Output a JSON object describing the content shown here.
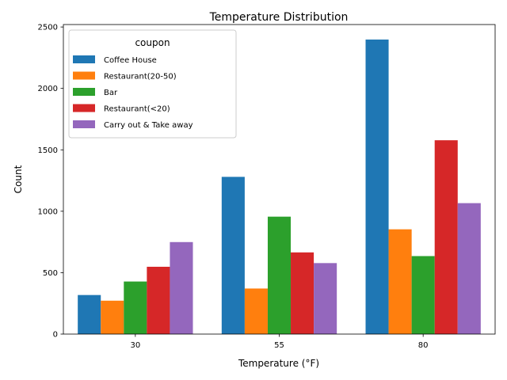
{
  "chart_data": {
    "type": "bar",
    "title": "Temperature Distribution",
    "xlabel": "Temperature (°F)",
    "ylabel": "Count",
    "categories": [
      "30",
      "55",
      "80"
    ],
    "ylim": [
      0,
      2520
    ],
    "yticks": [
      0,
      500,
      1000,
      1500,
      2000,
      2500
    ],
    "grid": false,
    "legend": {
      "title": "coupon",
      "placement": "top-left"
    },
    "series": [
      {
        "name": "Coffee House",
        "color": "#1f77b4",
        "values": [
          318,
          1280,
          2398
        ]
      },
      {
        "name": "Restaurant(20-50)",
        "color": "#ff7f0e",
        "values": [
          272,
          371,
          853
        ]
      },
      {
        "name": "Bar",
        "color": "#2ca02c",
        "values": [
          428,
          956,
          635
        ]
      },
      {
        "name": "Restaurant(<20)",
        "color": "#d62728",
        "values": [
          548,
          665,
          1578
        ]
      },
      {
        "name": "Carry out & Take away",
        "color": "#9467bd",
        "values": [
          749,
          578,
          1066
        ]
      }
    ]
  }
}
